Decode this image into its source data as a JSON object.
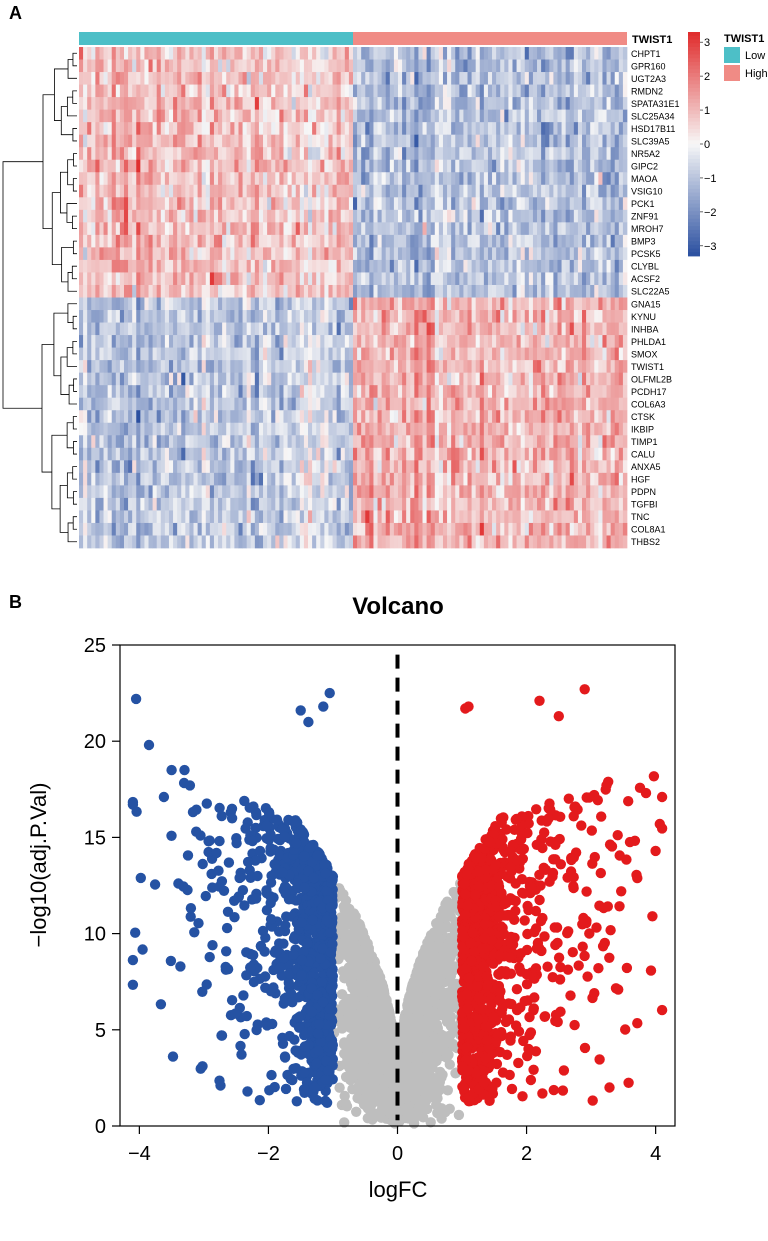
{
  "panel_labels": {
    "a": "A",
    "b": "B"
  },
  "chart_data": [
    {
      "type": "heatmap",
      "annotation_title": "TWIST1",
      "annotation_legend": {
        "title": "TWIST1",
        "levels": [
          "Low",
          "High"
        ],
        "colors": [
          "#4dbfc7",
          "#f08b85"
        ]
      },
      "column_groups": [
        {
          "label": "Low",
          "count": 67
        },
        {
          "label": "High",
          "count": 67
        }
      ],
      "rows_up_in_low": [
        "CHPT1",
        "GPR160",
        "UGT2A3",
        "RMDN2",
        "SPATA31E1",
        "SLC25A34",
        "HSD17B11",
        "SLC39A5",
        "NR5A2",
        "GIPC2",
        "MAOA",
        "VSIG10",
        "PCK1",
        "ZNF91",
        "MROH7",
        "BMP3",
        "PCSK5",
        "CLYBL",
        "ACSF2",
        "SLC22A5"
      ],
      "rows_up_in_high": [
        "GNA15",
        "KYNU",
        "INHBA",
        "PHLDA1",
        "SMOX",
        "TWIST1",
        "OLFML2B",
        "PCDH17",
        "COL6A3",
        "CTSK",
        "IKBIP",
        "TIMP1",
        "CALU",
        "ANXA5",
        "HGF",
        "PDPN",
        "TGFBI",
        "TNC",
        "COL8A1",
        "THBS2"
      ],
      "color_scale": {
        "min": -3.3,
        "max": 3.3,
        "low": "#2a4fa0",
        "mid": "#f7f7f7",
        "high": "#e02b2b",
        "ticks": [
          3,
          2,
          1,
          0,
          -1,
          -2,
          -3
        ]
      }
    },
    {
      "type": "scatter",
      "title": "Volcano",
      "xlabel": "logFC",
      "ylabel": "−log10(adj.P.Val)",
      "xlim": [
        -4.3,
        4.3
      ],
      "ylim": [
        0,
        25
      ],
      "xticks": [
        -4,
        -2,
        0,
        2,
        4
      ],
      "yticks": [
        0,
        5,
        10,
        15,
        20,
        25
      ],
      "threshold_line_x": 0,
      "colors": {
        "down": "#2552a3",
        "ns": "#bebebe",
        "up": "#e31a1c"
      },
      "highlight_points": [
        [
          -4.05,
          22.2
        ],
        [
          -3.85,
          19.8
        ],
        [
          -3.62,
          17.1
        ],
        [
          -3.5,
          18.5
        ],
        [
          -3.3,
          18.5
        ],
        [
          -1.05,
          22.5
        ],
        [
          -1.5,
          21.6
        ],
        [
          -1.38,
          21.0
        ],
        [
          -1.15,
          21.8
        ],
        [
          1.05,
          21.7
        ],
        [
          1.1,
          21.8
        ],
        [
          2.2,
          22.1
        ],
        [
          2.9,
          22.7
        ],
        [
          2.5,
          21.3
        ],
        [
          3.85,
          17.3
        ],
        [
          4.1,
          17.1
        ],
        [
          3.05,
          6.9
        ],
        [
          3.95,
          10.9
        ],
        [
          4.0,
          14.3
        ]
      ],
      "n_generated_points": 5200,
      "random_seed": 20240517
    }
  ]
}
